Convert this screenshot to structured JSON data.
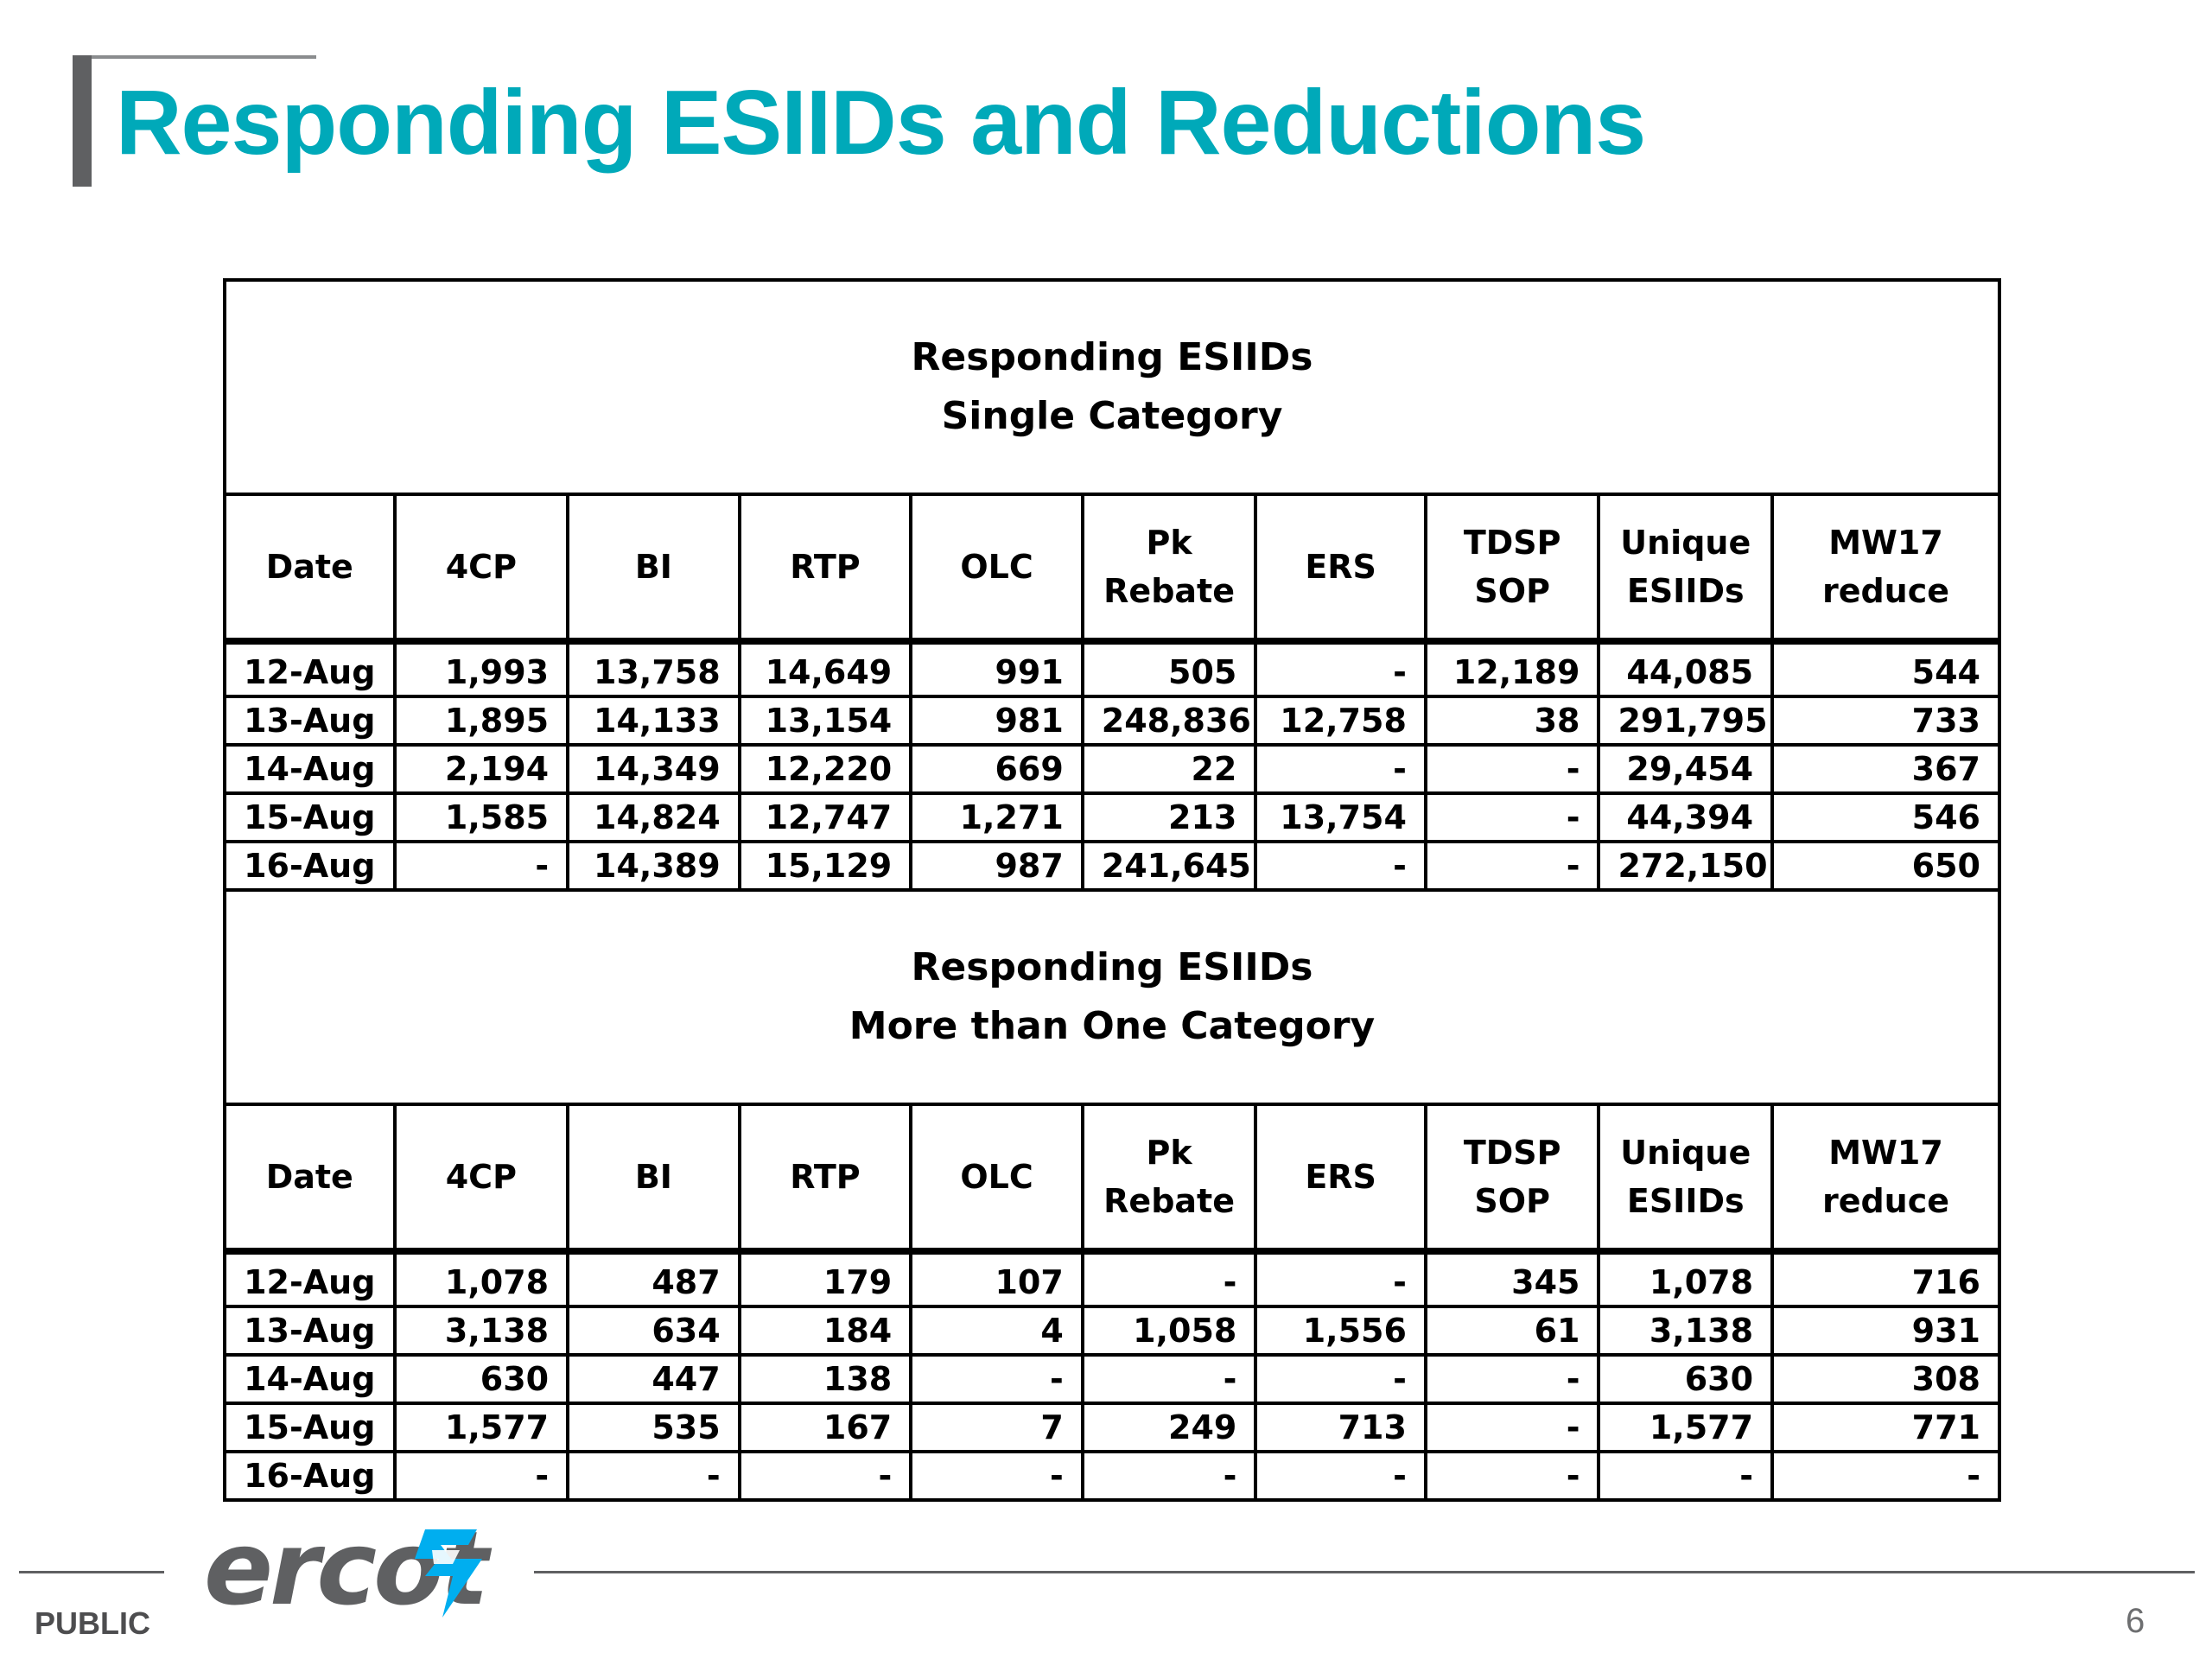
{
  "slide": {
    "title": "Responding ESIIDs and Reductions",
    "page_number": "6"
  },
  "footer": {
    "classification": "PUBLIC",
    "logo_text": "ercot",
    "colors": {
      "brand_teal": "#00a9b9",
      "logo_gray": "#5f6062",
      "logo_teal": "#00aeef"
    }
  },
  "section1": {
    "title_line1": "Responding ESIIDs",
    "title_line2": "Single Category",
    "headers": [
      "Date",
      "4CP",
      "BI",
      "RTP",
      "OLC",
      "Pk Rebate",
      "ERS",
      "TDSP SOP",
      "Unique ESIIDs",
      "MW17 reduce"
    ],
    "rows": [
      [
        "12-Aug",
        "1,993",
        "13,758",
        "14,649",
        "991",
        "505",
        "-",
        "12,189",
        "44,085",
        "544"
      ],
      [
        "13-Aug",
        "1,895",
        "14,133",
        "13,154",
        "981",
        "248,836",
        "12,758",
        "38",
        "291,795",
        "733"
      ],
      [
        "14-Aug",
        "2,194",
        "14,349",
        "12,220",
        "669",
        "22",
        "-",
        "-",
        "29,454",
        "367"
      ],
      [
        "15-Aug",
        "1,585",
        "14,824",
        "12,747",
        "1,271",
        "213",
        "13,754",
        "-",
        "44,394",
        "546"
      ],
      [
        "16-Aug",
        "-",
        "14,389",
        "15,129",
        "987",
        "241,645",
        "-",
        "-",
        "272,150",
        "650"
      ]
    ]
  },
  "section2": {
    "title_line1": "Responding ESIIDs",
    "title_line2": "More than One Category",
    "headers": [
      "Date",
      "4CP",
      "BI",
      "RTP",
      "OLC",
      "Pk Rebate",
      "ERS",
      "TDSP SOP",
      "Unique ESIIDs",
      "MW17 reduce"
    ],
    "rows": [
      [
        "12-Aug",
        "1,078",
        "487",
        "179",
        "107",
        "-",
        "-",
        "345",
        "1,078",
        "716"
      ],
      [
        "13-Aug",
        "3,138",
        "634",
        "184",
        "4",
        "1,058",
        "1,556",
        "61",
        "3,138",
        "931"
      ],
      [
        "14-Aug",
        "630",
        "447",
        "138",
        "-",
        "-",
        "-",
        "-",
        "630",
        "308"
      ],
      [
        "15-Aug",
        "1,577",
        "535",
        "167",
        "7",
        "249",
        "713",
        "-",
        "1,577",
        "771"
      ],
      [
        "16-Aug",
        "-",
        "-",
        "-",
        "-",
        "-",
        "-",
        "-",
        "-",
        "-"
      ]
    ]
  }
}
